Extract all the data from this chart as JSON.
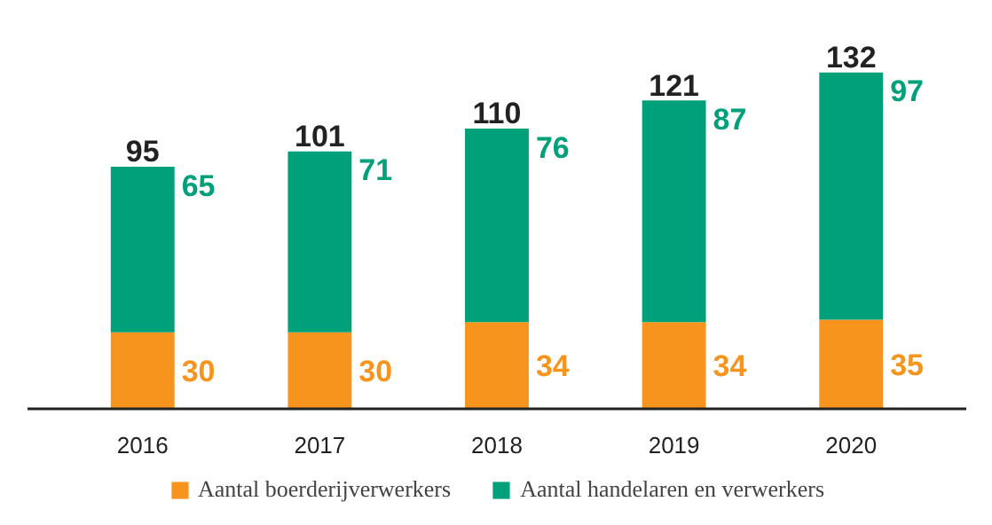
{
  "chart_data": {
    "type": "bar",
    "stacked": true,
    "data_labels": true,
    "legend": "bottom",
    "grid": false,
    "categories": [
      "2016",
      "2017",
      "2018",
      "2019",
      "2020"
    ],
    "series": [
      {
        "name": "Aantal boerderijverwerkers",
        "color": "#f7941d",
        "values": [
          30,
          30,
          34,
          34,
          35
        ]
      },
      {
        "name": "Aantal handelaren en verwerkers",
        "color": "#00a07a",
        "values": [
          65,
          71,
          76,
          87,
          97
        ]
      }
    ],
    "totals": [
      "95",
      "101",
      "110",
      "121",
      "132"
    ]
  }
}
